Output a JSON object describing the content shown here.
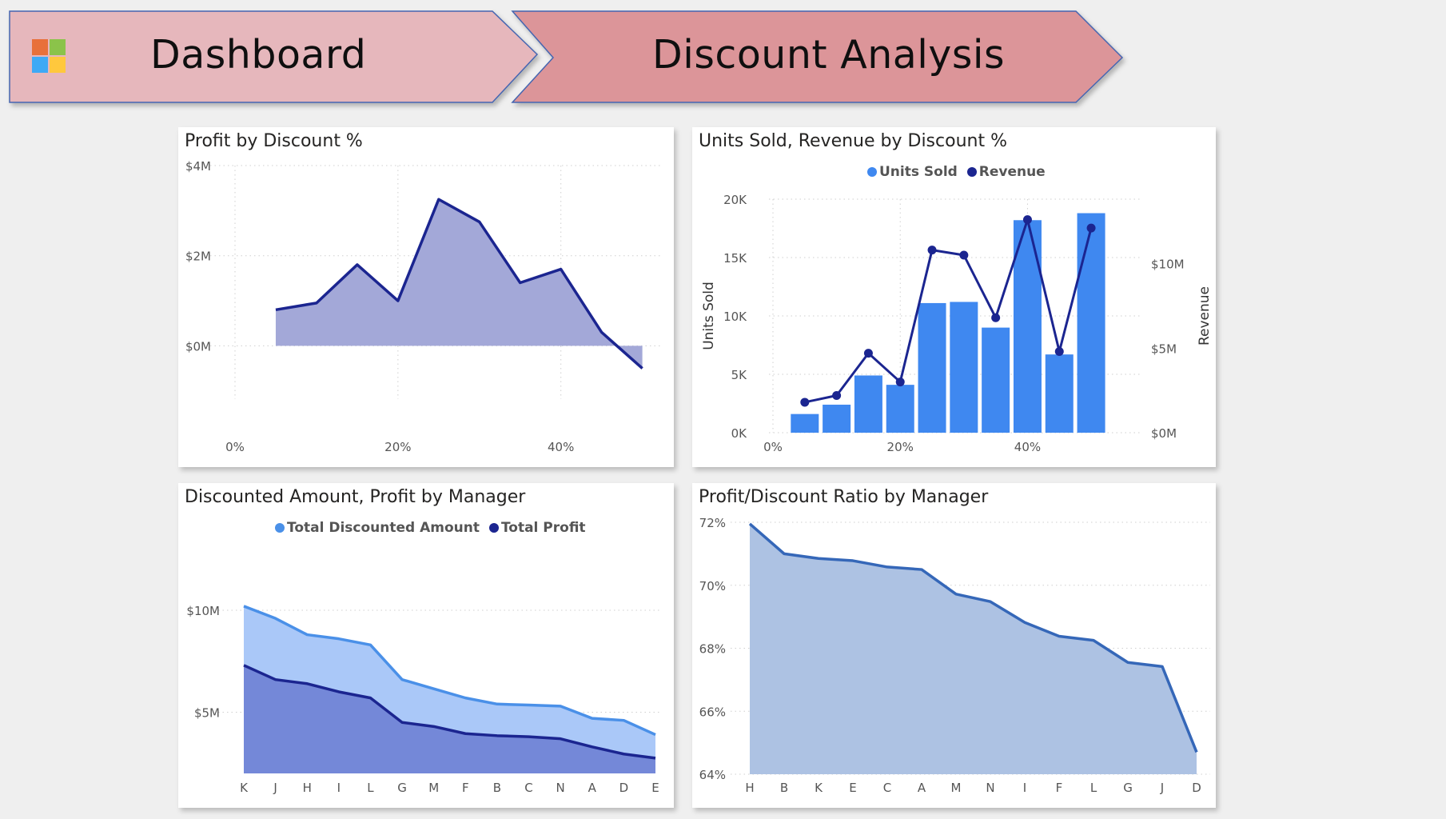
{
  "header": {
    "dashboard_label": "Dashboard",
    "page_label": "Discount Analysis",
    "logo_colors": [
      "#e8703a",
      "#8bc34a",
      "#3fa9f5",
      "#ffc83d"
    ]
  },
  "colors": {
    "navy": "#1b2590",
    "area_purple": "#a3a8d8",
    "bar_blue": "#3f88f0",
    "line_light": "#4a90e8",
    "area_light": "#aac8f8",
    "area_dark": "#7488d8",
    "ratio_line": "#3567b8",
    "ratio_area": "#adc2e3"
  },
  "charts": {
    "profit_by_discount": {
      "title": "Profit by Discount %"
    },
    "units_revenue": {
      "title": "Units Sold, Revenue by Discount %",
      "legend": [
        "Units Sold",
        "Revenue"
      ],
      "y_left_title": "Units Sold",
      "y_right_title": "Revenue"
    },
    "discounted_profit_manager": {
      "title": "Discounted Amount, Profit by Manager",
      "legend": [
        "Total Discounted Amount",
        "Total Profit"
      ]
    },
    "ratio_manager": {
      "title": "Profit/Discount Ratio by Manager"
    }
  },
  "chart_data": [
    {
      "type": "area",
      "title": "Profit by Discount %",
      "x_unit": "percent",
      "x": [
        5,
        10,
        15,
        20,
        25,
        30,
        35,
        40,
        45,
        50
      ],
      "y": [
        0.8,
        0.95,
        1.8,
        1.0,
        3.25,
        2.75,
        1.4,
        1.7,
        0.3,
        -0.5
      ],
      "y_unit": "$M",
      "xlim": [
        0,
        52
      ],
      "ylim": [
        -1.2,
        4
      ],
      "x_ticks": [
        "0%",
        "20%",
        "40%"
      ],
      "x_tick_values": [
        0,
        20,
        40
      ],
      "y_ticks": [
        "$0M",
        "$2M",
        "$4M"
      ],
      "y_tick_values": [
        0,
        2,
        4
      ],
      "grid": true
    },
    {
      "type": "bar",
      "title": "Units Sold, Revenue by Discount %",
      "x_unit": "percent",
      "x": [
        5,
        10,
        15,
        20,
        25,
        30,
        35,
        40,
        45,
        50
      ],
      "series": [
        {
          "name": "Units Sold",
          "type": "bar",
          "axis": "left",
          "values": [
            1600,
            2400,
            4900,
            4100,
            11100,
            11200,
            9000,
            18200,
            6700,
            18800
          ]
        },
        {
          "name": "Revenue",
          "type": "line",
          "axis": "right",
          "unit": "$M",
          "values": [
            1.8,
            2.2,
            4.7,
            3.0,
            10.8,
            10.5,
            6.8,
            12.6,
            4.8,
            12.1
          ]
        }
      ],
      "xlim": [
        0,
        52
      ],
      "ylim_left": [
        0,
        20000
      ],
      "ylim_right": [
        0,
        14
      ],
      "x_ticks": [
        "0%",
        "20%",
        "40%"
      ],
      "x_tick_values": [
        0,
        20,
        40
      ],
      "y_left_ticks": [
        "0K",
        "5K",
        "10K",
        "15K",
        "20K"
      ],
      "y_left_tick_values": [
        0,
        5000,
        10000,
        15000,
        20000
      ],
      "y_right_ticks": [
        "$0M",
        "$5M",
        "$10M"
      ],
      "y_right_tick_values": [
        0,
        5,
        10
      ],
      "ylabel_left": "Units Sold",
      "ylabel_right": "Revenue",
      "legend": "top-center",
      "grid": true
    },
    {
      "type": "area",
      "title": "Discounted Amount, Profit by Manager",
      "categories": [
        "K",
        "J",
        "H",
        "I",
        "L",
        "G",
        "M",
        "F",
        "B",
        "C",
        "N",
        "A",
        "D",
        "E"
      ],
      "series": [
        {
          "name": "Total Discounted Amount",
          "values": [
            10.2,
            9.6,
            8.8,
            8.6,
            8.3,
            6.6,
            6.15,
            5.7,
            5.4,
            5.35,
            5.3,
            4.7,
            4.6,
            3.9
          ]
        },
        {
          "name": "Total Profit",
          "values": [
            7.3,
            6.6,
            6.4,
            6.0,
            5.7,
            4.5,
            4.3,
            3.95,
            3.85,
            3.8,
            3.7,
            3.3,
            2.95,
            2.75
          ]
        }
      ],
      "y_unit": "$M",
      "ylim": [
        2,
        10.9
      ],
      "y_ticks": [
        "$5M",
        "$10M"
      ],
      "y_tick_values": [
        5,
        10
      ],
      "legend": "top-center",
      "grid": true
    },
    {
      "type": "area",
      "title": "Profit/Discount Ratio by Manager",
      "categories": [
        "H",
        "B",
        "K",
        "E",
        "C",
        "A",
        "M",
        "N",
        "I",
        "F",
        "L",
        "G",
        "J",
        "D"
      ],
      "values": [
        71.95,
        71.0,
        70.85,
        70.78,
        70.58,
        70.5,
        69.72,
        69.48,
        68.82,
        68.38,
        68.25,
        67.55,
        67.42,
        64.7
      ],
      "y_unit": "%",
      "ylim": [
        64,
        72
      ],
      "y_ticks": [
        "64%",
        "66%",
        "68%",
        "70%",
        "72%"
      ],
      "y_tick_values": [
        64,
        66,
        68,
        70,
        72
      ],
      "grid": true
    }
  ]
}
